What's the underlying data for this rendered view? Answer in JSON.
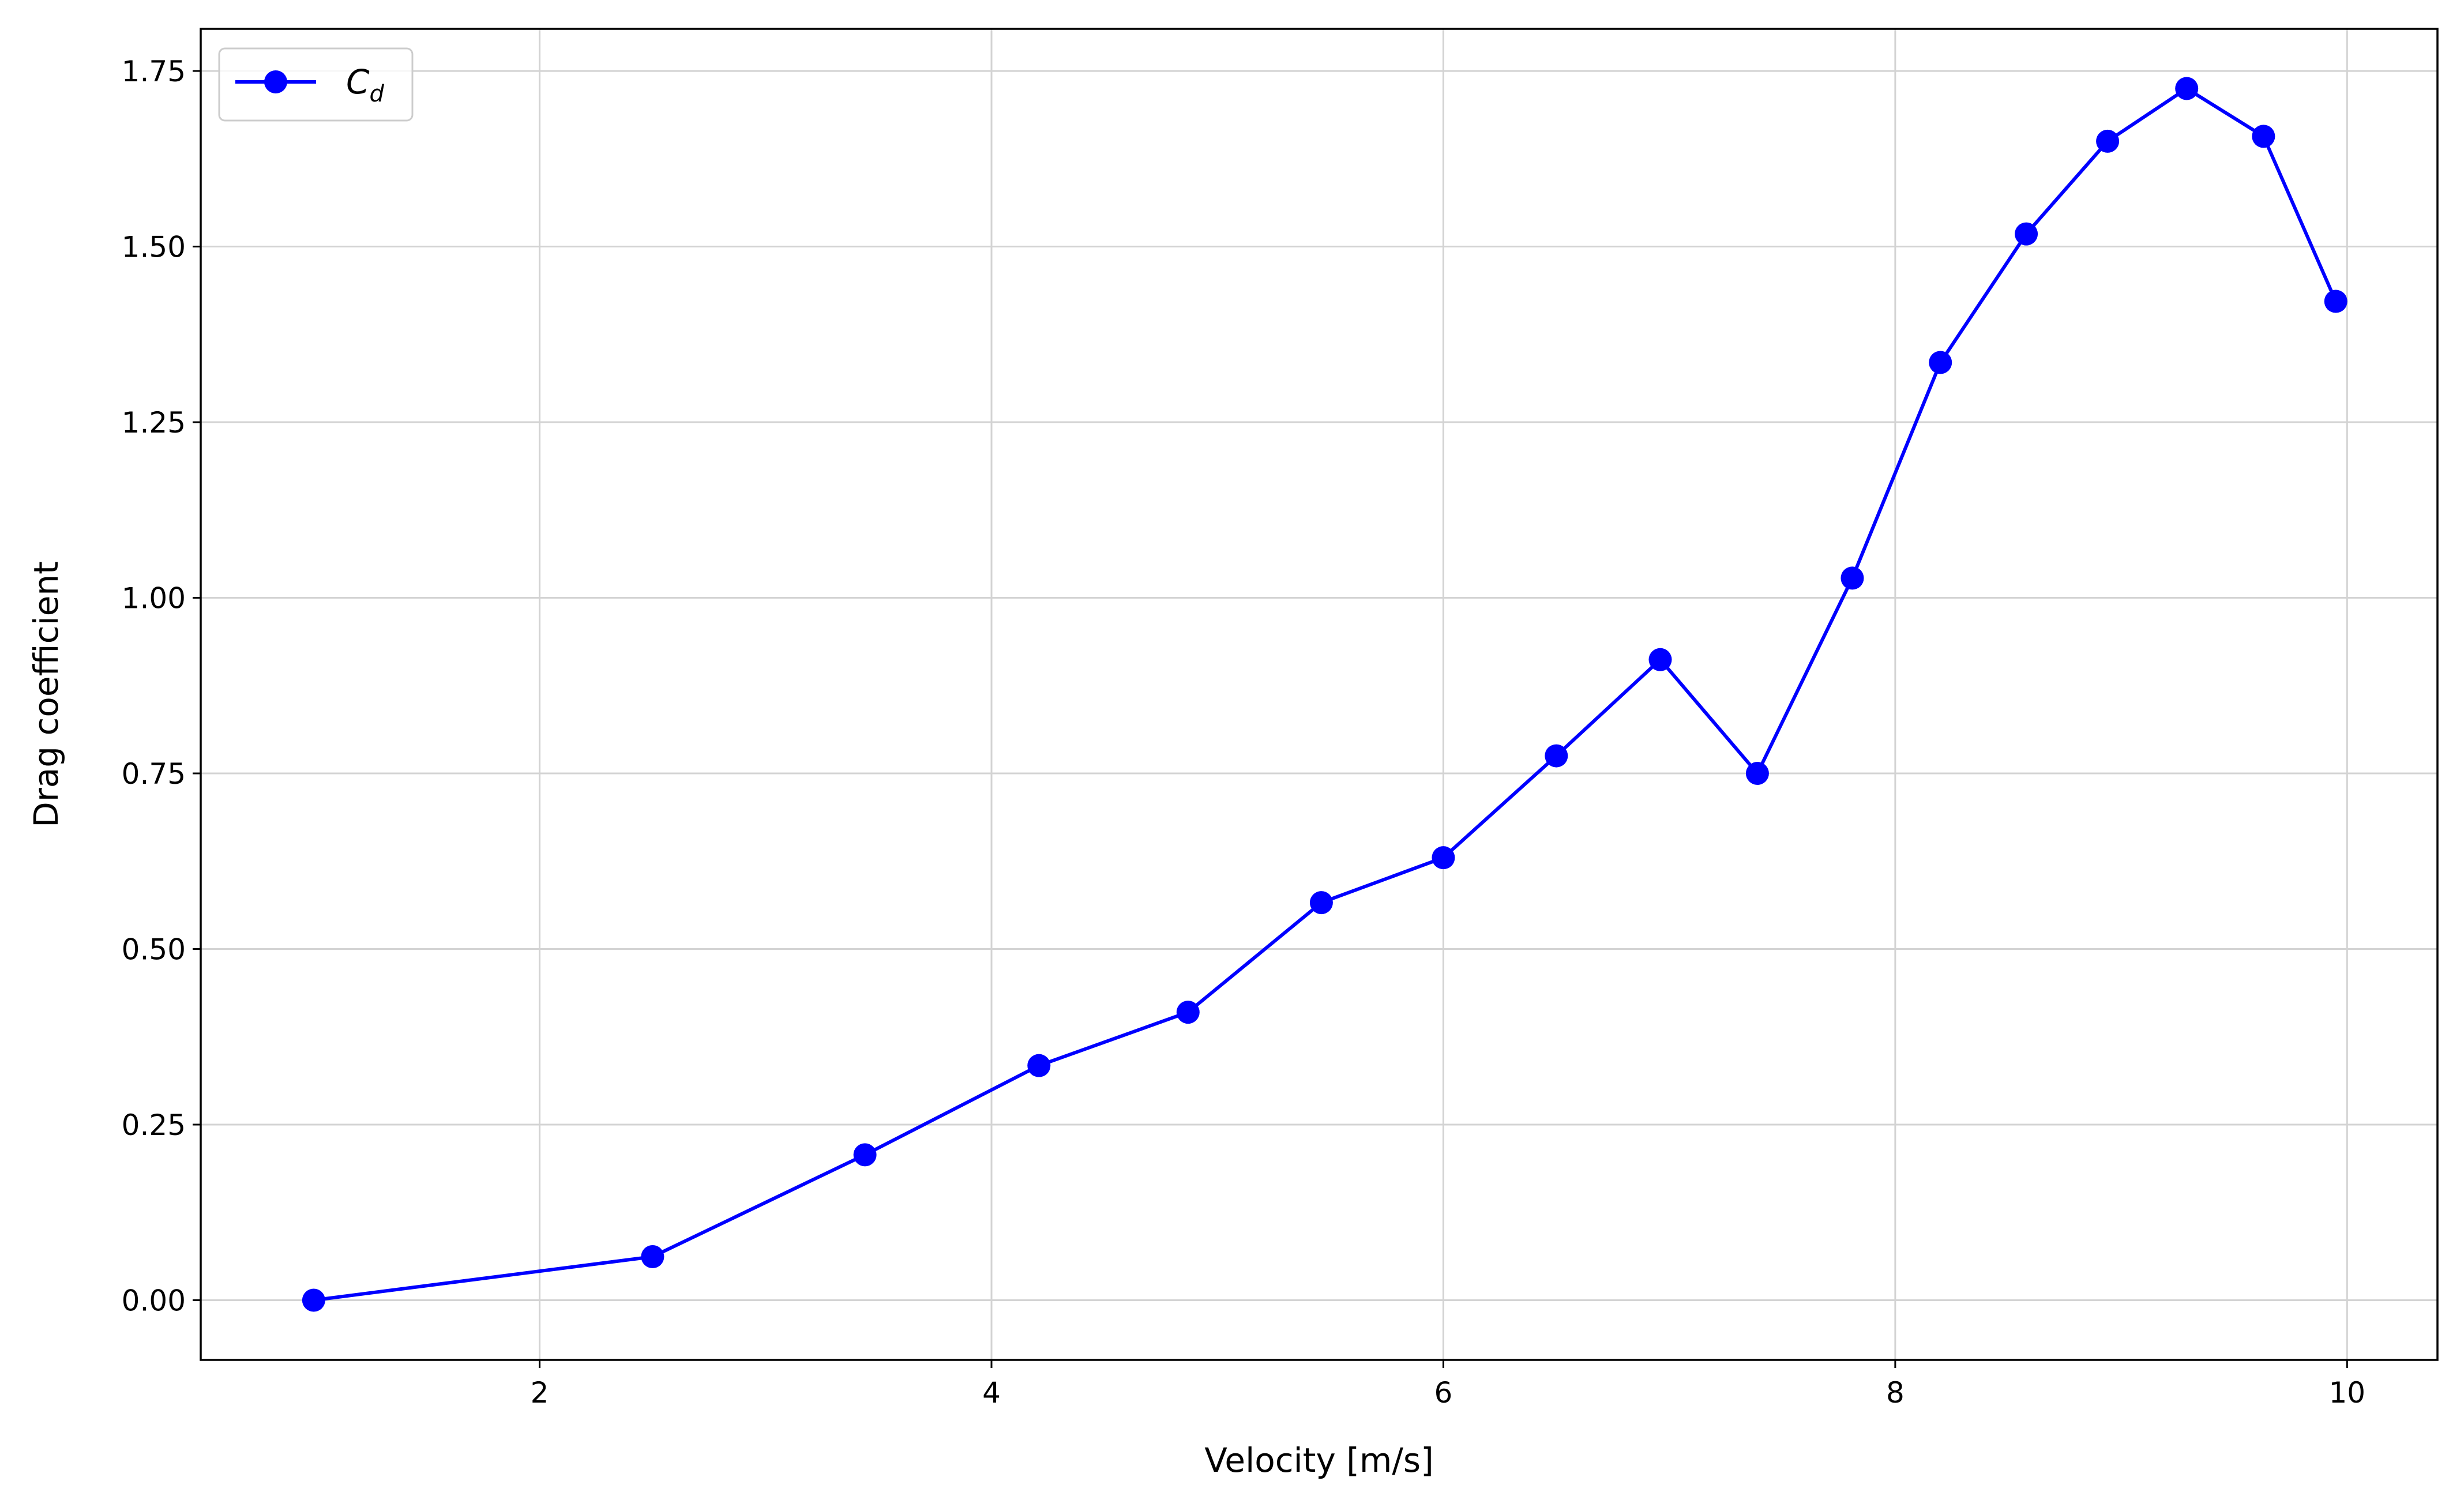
{
  "chart_data": {
    "type": "line",
    "xlabel": "Velocity [m/s]",
    "ylabel": "Drag coefficient",
    "xlim": [
      0.5,
      10.4
    ],
    "ylim": [
      -0.085,
      1.81
    ],
    "x_ticks": [
      2,
      4,
      6,
      8,
      10
    ],
    "x_tick_labels": [
      "2",
      "4",
      "6",
      "8",
      "10"
    ],
    "y_ticks": [
      0.0,
      0.25,
      0.5,
      0.75,
      1.0,
      1.25,
      1.5,
      1.75
    ],
    "y_tick_labels": [
      "0.00",
      "0.25",
      "0.50",
      "0.75",
      "1.00",
      "1.25",
      "1.50",
      "1.75"
    ],
    "grid": true,
    "legend_position": "top-left",
    "series": [
      {
        "name": "C_d",
        "legend_main": "C",
        "legend_sub": "d",
        "color": "#0000ff",
        "marker": "circle",
        "x": [
          1.0,
          2.5,
          3.44,
          4.21,
          4.87,
          5.46,
          6.0,
          6.5,
          6.96,
          7.39,
          7.81,
          8.2,
          8.58,
          8.94,
          9.29,
          9.63,
          9.95
        ],
        "y": [
          0.0,
          0.062,
          0.207,
          0.334,
          0.41,
          0.566,
          0.63,
          0.775,
          0.912,
          0.75,
          1.028,
          1.335,
          1.518,
          1.65,
          1.725,
          1.657,
          1.422
        ]
      }
    ]
  }
}
